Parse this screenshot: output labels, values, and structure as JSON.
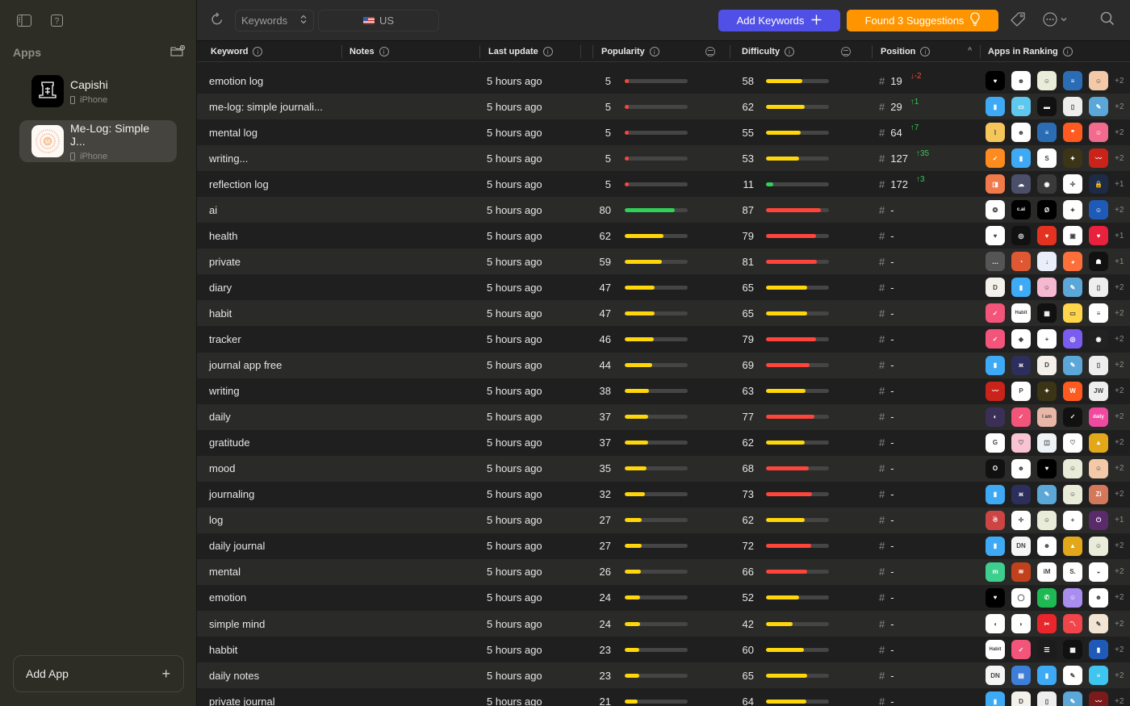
{
  "sidebar": {
    "section_title": "Apps",
    "apps": [
      {
        "name": "Capishi",
        "platform": "iPhone"
      },
      {
        "name": "Me-Log: Simple J...",
        "platform": "iPhone",
        "selected": true
      }
    ],
    "add_app_label": "Add App",
    "add_app_icon": "+"
  },
  "toolbar": {
    "mode_select": "Keywords",
    "country": "US",
    "add_keywords_label": "Add Keywords",
    "add_keywords_icon": "+",
    "suggestions_label": "Found 3 Suggestions",
    "colors": {
      "add_keywords": "#5150e6",
      "suggestions": "#fe9500"
    }
  },
  "columns": {
    "keyword": "Keyword",
    "notes": "Notes",
    "last_update": "Last update",
    "popularity": "Popularity",
    "difficulty": "Difficulty",
    "position": "Position",
    "apps_in_ranking": "Apps in Ranking",
    "info_glyph": "i",
    "sort_glyph": "^"
  },
  "colors": {
    "green": "#30d158",
    "yellow": "#ffd60a",
    "red": "#ff453a"
  },
  "rows": [
    {
      "keyword": "emotion log",
      "updated": "5 hours ago",
      "popularity": "5",
      "difficulty": "58",
      "position": "19",
      "delta": "↓-2",
      "delta_dir": "down",
      "more": "+2",
      "apps": [
        [
          "#000",
          "♥"
        ],
        [
          "#fff",
          "☻"
        ],
        [
          "#e8ecd8",
          "☺"
        ],
        [
          "#2a6db5",
          "≡"
        ],
        [
          "#f3c9a8",
          "☺"
        ]
      ]
    },
    {
      "keyword": "me-log: simple journali...",
      "updated": "5 hours ago",
      "popularity": "5",
      "difficulty": "62",
      "position": "29",
      "delta": "↑1",
      "delta_dir": "up",
      "more": "+2",
      "apps": [
        [
          "#3eaaf5",
          "▮"
        ],
        [
          "#5ec8ee",
          "▭"
        ],
        [
          "#111",
          "▬"
        ],
        [
          "#eee",
          "▯"
        ],
        [
          "#5ba7d8",
          "✎"
        ]
      ]
    },
    {
      "keyword": "mental log",
      "updated": "5 hours ago",
      "popularity": "5",
      "difficulty": "55",
      "position": "64",
      "delta": "↑7",
      "delta_dir": "up",
      "more": "+2",
      "apps": [
        [
          "#f5c65a",
          "⌇"
        ],
        [
          "#fff",
          "☻"
        ],
        [
          "#2a6db5",
          "≡"
        ],
        [
          "#ff5a1f",
          "❞"
        ],
        [
          "#f26a8d",
          "☺"
        ]
      ]
    },
    {
      "keyword": "writing...",
      "updated": "5 hours ago",
      "popularity": "5",
      "difficulty": "53",
      "position": "127",
      "delta": "↑35",
      "delta_dir": "up",
      "more": "+2",
      "apps": [
        [
          "#ff8a1e",
          "✓"
        ],
        [
          "#3eaaf5",
          "▮"
        ],
        [
          "#fff",
          "S"
        ],
        [
          "#3b3416",
          "✦"
        ],
        [
          "#c9231a",
          "〰"
        ]
      ]
    },
    {
      "keyword": "reflection log",
      "updated": "5 hours ago",
      "popularity": "5",
      "difficulty": "11",
      "position": "172",
      "delta": "↑3",
      "delta_dir": "up",
      "more": "+1",
      "apps": [
        [
          "#f07a4a",
          "◨"
        ],
        [
          "#4c4f6a",
          "☁"
        ],
        [
          "#3a3a3a",
          "◉"
        ],
        [
          "#fff",
          "✢"
        ],
        [
          "#1e2b45",
          "🔒"
        ]
      ]
    },
    {
      "keyword": "ai",
      "updated": "5 hours ago",
      "popularity": "80",
      "difficulty": "87",
      "position": "-",
      "more": "+2",
      "apps": [
        [
          "#fff",
          "❂"
        ],
        [
          "#000",
          "c.ai"
        ],
        [
          "#000",
          "Ø"
        ],
        [
          "#fff",
          "✦"
        ],
        [
          "#1f5ab8",
          "☺"
        ]
      ]
    },
    {
      "keyword": "health",
      "updated": "5 hours ago",
      "popularity": "62",
      "difficulty": "79",
      "position": "-",
      "more": "+1",
      "apps": [
        [
          "#fff",
          "♥"
        ],
        [
          "#111",
          "◎"
        ],
        [
          "#e3321f",
          "♥"
        ],
        [
          "#fff",
          "▣"
        ],
        [
          "#e8213d",
          "♥"
        ]
      ]
    },
    {
      "keyword": "private",
      "updated": "5 hours ago",
      "popularity": "59",
      "difficulty": "81",
      "position": "-",
      "more": "+1",
      "apps": [
        [
          "#555",
          "…"
        ],
        [
          "#de5833",
          "◔"
        ],
        [
          "#eaeefb",
          "↓"
        ],
        [
          "#ff6f3a",
          "◕"
        ],
        [
          "#111",
          "☗"
        ]
      ]
    },
    {
      "keyword": "diary",
      "updated": "5 hours ago",
      "popularity": "47",
      "difficulty": "65",
      "position": "-",
      "more": "+2",
      "apps": [
        [
          "#f4f1ea",
          "D"
        ],
        [
          "#3eaaf5",
          "▮"
        ],
        [
          "#f5b8d0",
          "☺"
        ],
        [
          "#5ba7d8",
          "✎"
        ],
        [
          "#eee",
          "▯"
        ]
      ]
    },
    {
      "keyword": "habit",
      "updated": "5 hours ago",
      "popularity": "47",
      "difficulty": "65",
      "position": "-",
      "more": "+2",
      "apps": [
        [
          "#f2547a",
          "✓"
        ],
        [
          "#fff",
          "Habit"
        ],
        [
          "#111",
          "▦"
        ],
        [
          "#ffd54a",
          "▭"
        ],
        [
          "#fff",
          "≡"
        ]
      ]
    },
    {
      "keyword": "tracker",
      "updated": "5 hours ago",
      "popularity": "46",
      "difficulty": "79",
      "position": "-",
      "more": "+2",
      "apps": [
        [
          "#f2547a",
          "✓"
        ],
        [
          "#fff",
          "◆"
        ],
        [
          "#fff",
          "+"
        ],
        [
          "#7b5cf0",
          "◎"
        ],
        [
          "#222",
          "◉"
        ]
      ]
    },
    {
      "keyword": "journal app free",
      "updated": "5 hours ago",
      "popularity": "44",
      "difficulty": "69",
      "position": "-",
      "more": "+2",
      "apps": [
        [
          "#3eaaf5",
          "▮"
        ],
        [
          "#2c2e5c",
          "ж"
        ],
        [
          "#f4f1ea",
          "D"
        ],
        [
          "#5ba7d8",
          "✎"
        ],
        [
          "#eee",
          "▯"
        ]
      ]
    },
    {
      "keyword": "writing",
      "updated": "5 hours ago",
      "popularity": "38",
      "difficulty": "63",
      "position": "-",
      "more": "+2",
      "apps": [
        [
          "#c9231a",
          "〰"
        ],
        [
          "#fff",
          "P"
        ],
        [
          "#3b3416",
          "✦"
        ],
        [
          "#ff5a1f",
          "W"
        ],
        [
          "#eee",
          "JW"
        ]
      ]
    },
    {
      "keyword": "daily",
      "updated": "5 hours ago",
      "popularity": "37",
      "difficulty": "77",
      "position": "-",
      "more": "+2",
      "apps": [
        [
          "#3b2f57",
          "◐"
        ],
        [
          "#f2547a",
          "✓"
        ],
        [
          "#e8b7a8",
          "I am"
        ],
        [
          "#111",
          "✓"
        ],
        [
          "#f04aa0",
          "daily"
        ]
      ]
    },
    {
      "keyword": "gratitude",
      "updated": "5 hours ago",
      "popularity": "37",
      "difficulty": "62",
      "position": "-",
      "more": "+2",
      "apps": [
        [
          "#fff",
          "G"
        ],
        [
          "#f8c3d3",
          "♡"
        ],
        [
          "#eef3f7",
          "◫"
        ],
        [
          "#fff",
          "♡"
        ],
        [
          "#e3a81a",
          "▲"
        ]
      ]
    },
    {
      "keyword": "mood",
      "updated": "5 hours ago",
      "popularity": "35",
      "difficulty": "68",
      "position": "-",
      "more": "+2",
      "apps": [
        [
          "#111",
          "O"
        ],
        [
          "#fff",
          "☻"
        ],
        [
          "#000",
          "♥"
        ],
        [
          "#e8ecd8",
          "☺"
        ],
        [
          "#f3c9a8",
          "☺"
        ]
      ]
    },
    {
      "keyword": "journaling",
      "updated": "5 hours ago",
      "popularity": "32",
      "difficulty": "73",
      "position": "-",
      "more": "+2",
      "apps": [
        [
          "#3eaaf5",
          "▮"
        ],
        [
          "#2c2e5c",
          "ж"
        ],
        [
          "#5ba7d8",
          "✎"
        ],
        [
          "#e8ecd8",
          "☺"
        ],
        [
          "#d3785a",
          "Zi"
        ]
      ]
    },
    {
      "keyword": "log",
      "updated": "5 hours ago",
      "popularity": "27",
      "difficulty": "62",
      "position": "-",
      "more": "+1",
      "apps": [
        [
          "#c44",
          "☃"
        ],
        [
          "#fff",
          "✢"
        ],
        [
          "#e8ecd8",
          "☺"
        ],
        [
          "#fff",
          "+"
        ],
        [
          "#5a2a6a",
          "⏻"
        ]
      ]
    },
    {
      "keyword": "daily journal",
      "updated": "5 hours ago",
      "popularity": "27",
      "difficulty": "72",
      "position": "-",
      "more": "+2",
      "apps": [
        [
          "#3eaaf5",
          "▮"
        ],
        [
          "#f5f5f5",
          "DN"
        ],
        [
          "#fff",
          "☻"
        ],
        [
          "#e3a81a",
          "▲"
        ],
        [
          "#e8ecd8",
          "☺"
        ]
      ]
    },
    {
      "keyword": "mental",
      "updated": "5 hours ago",
      "popularity": "26",
      "difficulty": "66",
      "position": "-",
      "more": "+2",
      "apps": [
        [
          "#3ecf8e",
          "m"
        ],
        [
          "#c2411c",
          "≋"
        ],
        [
          "#fff",
          "iM"
        ],
        [
          "#fff",
          "S."
        ],
        [
          "#fff",
          "◒"
        ]
      ]
    },
    {
      "keyword": "emotion",
      "updated": "5 hours ago",
      "popularity": "24",
      "difficulty": "52",
      "position": "-",
      "more": "+2",
      "apps": [
        [
          "#000",
          "♥"
        ],
        [
          "#fff",
          "◯"
        ],
        [
          "#1fb954",
          "✆"
        ],
        [
          "#a98ef0",
          "☺"
        ],
        [
          "#fff",
          "☻"
        ]
      ]
    },
    {
      "keyword": "simple mind",
      "updated": "5 hours ago",
      "popularity": "24",
      "difficulty": "42",
      "position": "-",
      "more": "+2",
      "apps": [
        [
          "#fff",
          "◖"
        ],
        [
          "#fff",
          "◗"
        ],
        [
          "#e8262b",
          "✂"
        ],
        [
          "#f0454a",
          "〽"
        ],
        [
          "#f3e3d3",
          "✎"
        ]
      ]
    },
    {
      "keyword": "habbit",
      "updated": "5 hours ago",
      "popularity": "23",
      "difficulty": "60",
      "position": "-",
      "more": "+2",
      "apps": [
        [
          "#fff",
          "Habit"
        ],
        [
          "#f2547a",
          "✓"
        ],
        [
          "#1c1c1c",
          "☰"
        ],
        [
          "#111",
          "▦"
        ],
        [
          "#1f5ab8",
          "▮"
        ]
      ]
    },
    {
      "keyword": "daily notes",
      "updated": "5 hours ago",
      "popularity": "23",
      "difficulty": "65",
      "position": "-",
      "more": "+2",
      "apps": [
        [
          "#f5f5f5",
          "DN"
        ],
        [
          "#3d7ed8",
          "▤"
        ],
        [
          "#3eaaf5",
          "▮"
        ],
        [
          "#fff",
          "✎"
        ],
        [
          "#3ec5f0",
          "≡"
        ]
      ]
    },
    {
      "keyword": "private journal",
      "updated": "5 hours ago",
      "popularity": "21",
      "difficulty": "64",
      "position": "-",
      "more": "+2",
      "apps": [
        [
          "#3eaaf5",
          "▮"
        ],
        [
          "#f4f1ea",
          "D"
        ],
        [
          "#eee",
          "▯"
        ],
        [
          "#5ba7d8",
          "✎"
        ],
        [
          "#7a1a1a",
          "〰"
        ]
      ]
    }
  ]
}
